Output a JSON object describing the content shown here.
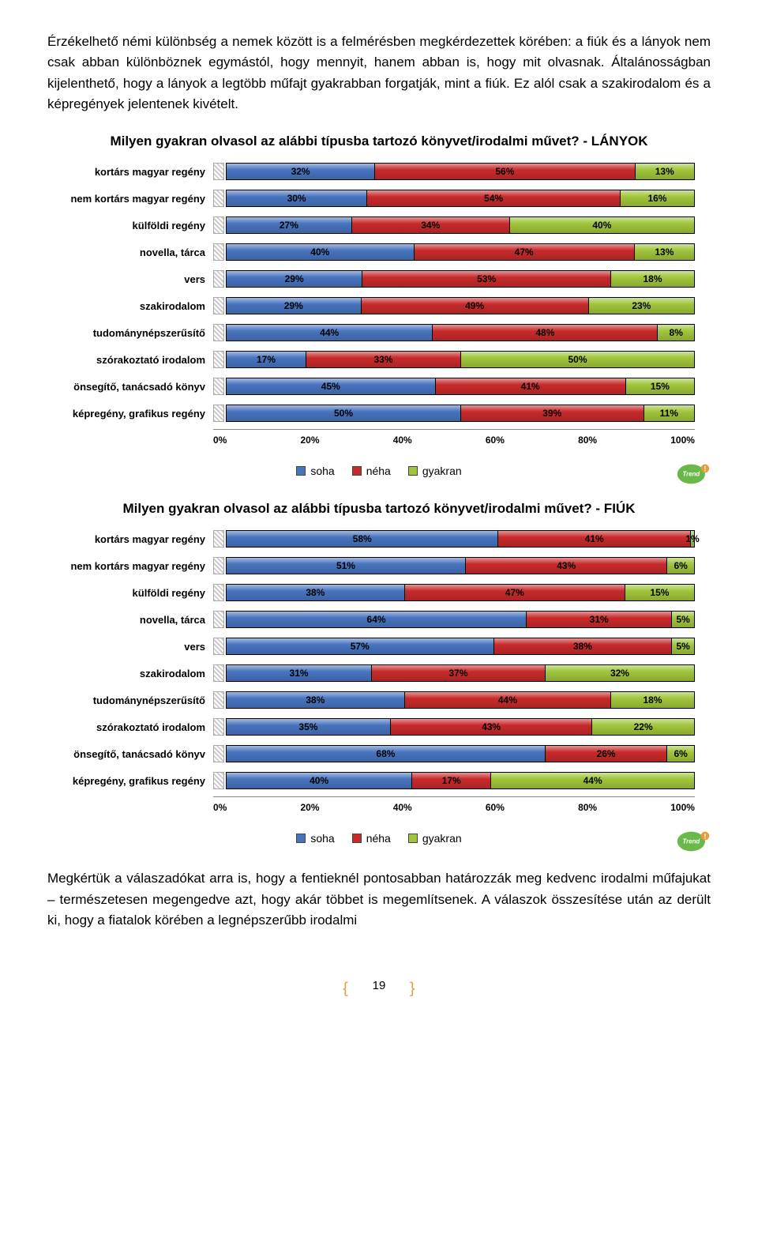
{
  "paragraphs": {
    "top": "Érzékelhető némi különbség a nemek között is a felmérésben megkérdezettek körében: a fiúk és a lányok nem csak abban különböznek egymástól, hogy mennyit, hanem abban is, hogy mit olvasnak. Általánosságban kijelenthető, hogy a lányok a legtöbb műfajt gyakrabban forgatják, mint a fiúk. Ez alól csak a szakirodalom és a képregények jelentenek kivételt.",
    "bottom": "Megkértük a válaszadókat arra is, hogy a fentieknél pontosabban határozzák meg kedvenc irodalmi műfajukat – természetesen megengedve azt, hogy akár többet is megemlítsenek. A válaszok összesítése után az derült ki, hogy a fiatalok körében a legnépszerűbb irodalmi"
  },
  "colors": {
    "soha": "#4774bf",
    "neha": "#c82a2a",
    "gyakran": "#a0c53a",
    "accent": "#e89b3c"
  },
  "chartA": {
    "title": "Milyen gyakran olvasol az alábbi típusba tartozó könyvet/irodalmi művet? - LÁNYOK",
    "categories": [
      {
        "label": "kortárs magyar regény",
        "v": [
          32,
          56,
          13
        ]
      },
      {
        "label": "nem kortárs magyar regény",
        "v": [
          30,
          54,
          16
        ]
      },
      {
        "label": "külföldi regény",
        "v": [
          27,
          34,
          40
        ]
      },
      {
        "label": "novella, tárca",
        "v": [
          40,
          47,
          13
        ]
      },
      {
        "label": "vers",
        "v": [
          29,
          53,
          18
        ]
      },
      {
        "label": "szakirodalom",
        "v": [
          29,
          49,
          23
        ]
      },
      {
        "label": "tudománynépszerűsítő",
        "v": [
          44,
          48,
          8
        ]
      },
      {
        "label": "szórakoztató irodalom",
        "v": [
          17,
          33,
          50
        ]
      },
      {
        "label": "önsegítő, tanácsadó könyv",
        "v": [
          45,
          41,
          15
        ]
      },
      {
        "label": "képregény, grafikus regény",
        "v": [
          50,
          39,
          11
        ]
      }
    ]
  },
  "chartB": {
    "title": "Milyen gyakran olvasol az alábbi típusba tartozó könyvet/irodalmi művet? - FIÚK",
    "categories": [
      {
        "label": "kortárs magyar regény",
        "v": [
          58,
          41,
          1
        ]
      },
      {
        "label": "nem kortárs magyar regény",
        "v": [
          51,
          43,
          6
        ]
      },
      {
        "label": "külföldi regény",
        "v": [
          38,
          47,
          15
        ]
      },
      {
        "label": "novella, tárca",
        "v": [
          64,
          31,
          5
        ]
      },
      {
        "label": "vers",
        "v": [
          57,
          38,
          5
        ]
      },
      {
        "label": "szakirodalom",
        "v": [
          31,
          37,
          32
        ]
      },
      {
        "label": "tudománynépszerűsítő",
        "v": [
          38,
          44,
          18
        ]
      },
      {
        "label": "szórakoztató irodalom",
        "v": [
          35,
          43,
          22
        ]
      },
      {
        "label": "önsegítő, tanácsadó könyv",
        "v": [
          68,
          26,
          6
        ]
      },
      {
        "label": "képregény, grafikus regény",
        "v": [
          40,
          17,
          44
        ]
      }
    ]
  },
  "axis": [
    "0%",
    "20%",
    "40%",
    "60%",
    "80%",
    "100%"
  ],
  "legend": {
    "soha": "soha",
    "neha": "néha",
    "gyakran": "gyakran"
  },
  "page": "19"
}
